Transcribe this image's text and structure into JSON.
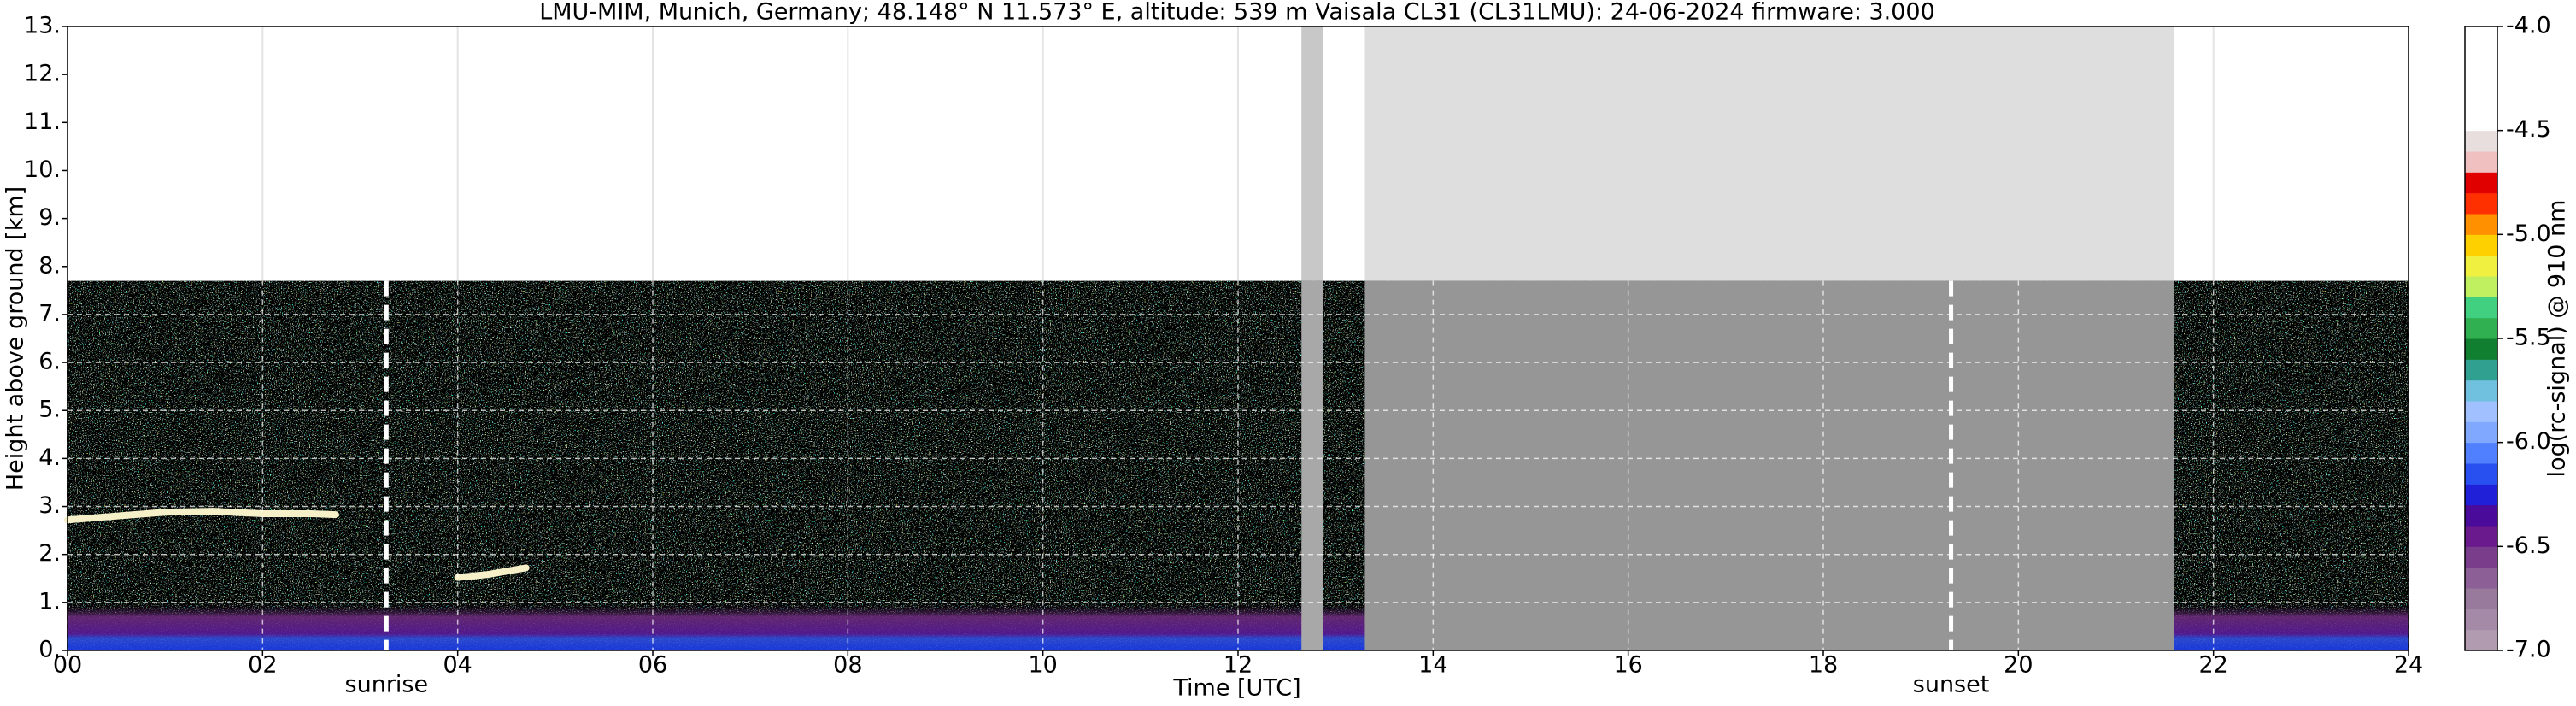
{
  "chart_data": {
    "type": "ceilometer",
    "title": "LMU-MIM, Munich, Germany; 48.148° N 11.573° E, altitude: 539 m    Vaisala CL31 (CL31LMU): 24-06-2024    firmware: 3.000",
    "xlabel": "Time [UTC]",
    "ylabel": "Height above ground [km]",
    "xlim": [
      0,
      24
    ],
    "xticks": [
      {
        "value": 0,
        "label": "00"
      },
      {
        "value": 2,
        "label": "02"
      },
      {
        "value": 4,
        "label": "04"
      },
      {
        "value": 6,
        "label": "06"
      },
      {
        "value": 8,
        "label": "08"
      },
      10,
      12,
      14,
      16,
      18,
      20,
      22,
      24
    ],
    "ylim": [
      0,
      13
    ],
    "yticks": [
      {
        "value": 0,
        "label": "0."
      },
      {
        "value": 1,
        "label": "1."
      },
      {
        "value": 2,
        "label": "2."
      },
      {
        "value": 3,
        "label": "3."
      },
      {
        "value": 4,
        "label": "4."
      },
      {
        "value": 5,
        "label": "5."
      },
      {
        "value": 6,
        "label": "6."
      },
      {
        "value": 7,
        "label": "7."
      },
      {
        "value": 8,
        "label": "8."
      },
      {
        "value": 9,
        "label": "9."
      },
      {
        "value": 10,
        "label": "10."
      },
      {
        "value": 11,
        "label": "11."
      },
      {
        "value": 12,
        "label": "12."
      },
      {
        "value": 13,
        "label": "13."
      }
    ],
    "grid": true,
    "measurement_top": 7.7,
    "no_data": [
      [
        12.65,
        12.87
      ],
      [
        13.3,
        21.6
      ]
    ],
    "cloud_layers": [
      {
        "x": [
          0,
          0.5,
          1,
          1.5,
          2,
          2.5,
          2.75
        ],
        "height": [
          2.72,
          2.8,
          2.88,
          2.9,
          2.85,
          2.85,
          2.83
        ]
      },
      {
        "x": [
          4.0,
          4.3,
          4.7
        ],
        "height": [
          1.52,
          1.58,
          1.72
        ]
      }
    ],
    "sun_events": [
      {
        "label": "sunrise",
        "x": 3.27
      },
      {
        "label": "sunset",
        "x": 19.31
      }
    ],
    "colorbar": {
      "label": "log(rc-signal) @ 910 nm",
      "clim": [
        -7,
        -4
      ],
      "ticks": [
        {
          "value": -7,
          "label": "-7.0"
        },
        -6.5,
        {
          "value": -6,
          "label": "-6.0"
        },
        -5.5,
        {
          "value": -5,
          "label": "-5.0"
        },
        -4.5,
        {
          "value": -4,
          "label": "-4.0"
        }
      ],
      "colors": [
        "#b09bb0",
        "#a48aa6",
        "#987a9c",
        "#8c5f96",
        "#7a3d8c",
        "#6a1a8c",
        "#4a0a9a",
        "#2020d8",
        "#2850f0",
        "#5080ff",
        "#80a8ff",
        "#a0c0ff",
        "#70c0e0",
        "#30a090",
        "#108030",
        "#30b050",
        "#40d080",
        "#c0f060",
        "#f0f040",
        "#ffd000",
        "#ff9000",
        "#ff3000",
        "#e00000",
        "#f0c0c0",
        "#e8dede",
        "#ffffff",
        "#ffffff",
        "#ffffff",
        "#ffffff",
        "#ffffff"
      ]
    }
  }
}
